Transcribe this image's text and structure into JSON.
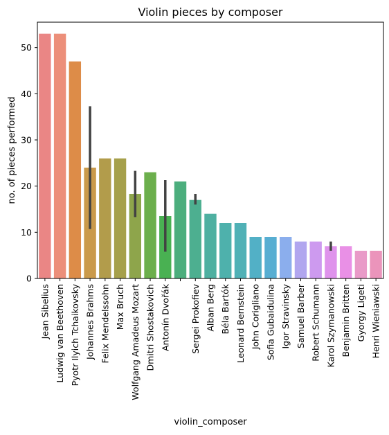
{
  "chart_data": {
    "type": "bar",
    "title": "Violin pieces by composer",
    "xlabel": "violin_composer",
    "ylabel": "no. of pieces performed",
    "ylim": [
      0,
      55.5
    ],
    "yticks": [
      0,
      10,
      20,
      30,
      40,
      50
    ],
    "grid": false,
    "legend": "none",
    "categories": [
      "Jean Sibelius",
      "Ludwig van Beethoven",
      "Pyotr Ilyich Tchaikovsky",
      "Johannes Brahms",
      "Felix Mendelssohn",
      "Max Bruch",
      "Wolfgang Amadeus Mozart",
      "Dmitri Shostakovich",
      "Antonín Dvořák",
      "",
      "Sergei Prokofiev",
      "Alban Berg",
      "Béla Bartók",
      "Leonard Bernstein",
      "John Corigliano",
      "Sofia Gubaidulina",
      "Igor Stravinsky",
      "Samuel Barber",
      "Robert Schumann",
      "Karol Szymanowski",
      "Benjamin Britten",
      "Gyorgy Ligeti",
      "Henri Wieniawski"
    ],
    "values": [
      53,
      53,
      47,
      24,
      26,
      26,
      18.3,
      23,
      13.5,
      21,
      17,
      14,
      12,
      12,
      9,
      9,
      9,
      8,
      8,
      7,
      7,
      6,
      6
    ],
    "error_low": [
      null,
      null,
      null,
      10.7,
      null,
      null,
      13.3,
      null,
      5.8,
      null,
      16,
      null,
      null,
      null,
      null,
      null,
      null,
      null,
      null,
      6,
      null,
      null,
      null
    ],
    "error_high": [
      null,
      null,
      null,
      37.3,
      null,
      null,
      23.3,
      null,
      21.3,
      null,
      18.3,
      null,
      null,
      null,
      null,
      null,
      null,
      null,
      null,
      8,
      null,
      null,
      null
    ],
    "colors": [
      "#ea8685",
      "#ec8f7a",
      "#dd8c48",
      "#ca9a4b",
      "#b29c4b",
      "#a6a04b",
      "#8ea54b",
      "#6caf4c",
      "#49b152",
      "#4cae7d",
      "#4daf90",
      "#4eb0a1",
      "#4eb1ac",
      "#50b1b6",
      "#52b0c6",
      "#57aed2",
      "#8baeed",
      "#b1a6ef",
      "#cd9aef",
      "#df93ec",
      "#e990e6",
      "#e99ac8",
      "#eb94bb"
    ]
  }
}
